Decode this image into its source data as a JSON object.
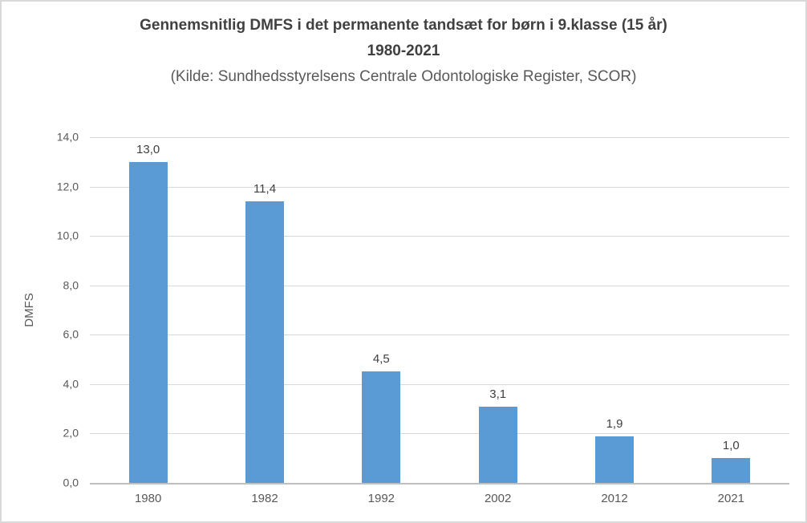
{
  "title": {
    "line1": "Gennemsnitlig DMFS i det permanente tandsæt for børn i 9.klasse (15 år)",
    "line2": "1980-2021",
    "source": "(Kilde: Sundhedsstyrelsens Centrale Odontologiske Register, SCOR)"
  },
  "chart_data": {
    "type": "bar",
    "title": "Gennemsnitlig DMFS i det permanente tandsæt for børn i 9.klasse (15 år) 1980-2021",
    "subtitle": "(Kilde: Sundhedsstyrelsens Centrale Odontologiske Register, SCOR)",
    "categories": [
      "1980",
      "1982",
      "1992",
      "2002",
      "2012",
      "2021"
    ],
    "values": [
      13.0,
      11.4,
      4.5,
      3.1,
      1.9,
      1.0
    ],
    "value_labels": [
      "13,0",
      "11,4",
      "4,5",
      "3,1",
      "1,9",
      "1,0"
    ],
    "xlabel": "",
    "ylabel": "DMFS",
    "ylim": [
      0,
      14
    ],
    "ytick_step": 2,
    "ytick_labels": [
      "0,0",
      "2,0",
      "4,0",
      "6,0",
      "8,0",
      "10,0",
      "12,0",
      "14,0"
    ],
    "grid": true,
    "legend": "none",
    "decimal_separator": ","
  },
  "colors": {
    "bar": "#5B9BD5",
    "gridline": "#D9D9D9",
    "axis_line": "#BFBFBF",
    "title_text": "#404040",
    "label_text": "#404040",
    "tick_text": "#595959",
    "border": "#D9D9D9",
    "background": "#FFFFFF"
  }
}
